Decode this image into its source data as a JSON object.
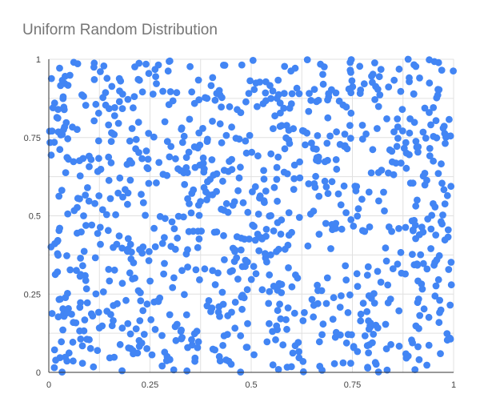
{
  "chart_data": {
    "type": "scatter",
    "title": "Uniform Random Distribution",
    "xlabel": "",
    "ylabel": "",
    "xlim": [
      0,
      1
    ],
    "ylim": [
      0,
      1
    ],
    "x_ticks": [
      "0",
      "0.25",
      "0.5",
      "0.75",
      "1"
    ],
    "y_ticks": [
      "0",
      "0.25",
      "0.5",
      "0.75",
      "1"
    ],
    "grid": true,
    "legend": "none",
    "point_count": 1000,
    "distribution": "uniform",
    "series": [
      {
        "color": "#4285f4"
      }
    ],
    "colors": {
      "grid": "#e0e0e0",
      "axis": "#333333",
      "title": "#757575",
      "tick_text": "#444444"
    }
  }
}
